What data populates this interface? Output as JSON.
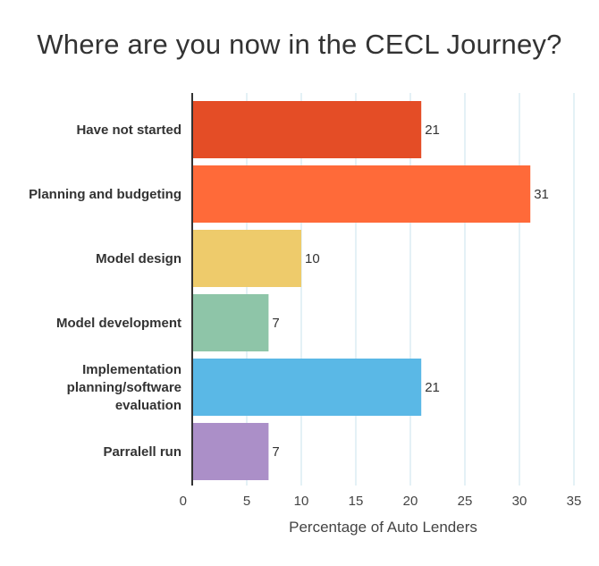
{
  "chart_data": {
    "type": "bar",
    "orientation": "horizontal",
    "title": "Where are you now in the CECL Journey?",
    "xlabel": "Percentage of Auto Lenders",
    "ylabel": "",
    "categories": [
      "Have not started",
      "Planning and budgeting",
      "Model design",
      "Model development",
      "Implementation planning/software evaluation",
      "Parralell run"
    ],
    "category_lines": [
      [
        "Have not started"
      ],
      [
        "Planning and budgeting"
      ],
      [
        "Model design"
      ],
      [
        "Model development"
      ],
      [
        "Implementation",
        "planning/software",
        "evaluation"
      ],
      [
        "Parralell run"
      ]
    ],
    "values": [
      21,
      31,
      10,
      7,
      21,
      7
    ],
    "value_labels": [
      "21",
      "31",
      "10",
      "7",
      "21",
      "7"
    ],
    "colors": [
      "#e44d26",
      "#ff6a39",
      "#eecb6b",
      "#8ec5a8",
      "#5ab8e6",
      "#ab8fc8"
    ],
    "xlim": [
      0,
      35
    ],
    "xticks": [
      "0",
      "5",
      "10",
      "15",
      "20",
      "25",
      "30",
      "35"
    ],
    "grid": true,
    "legend": "none"
  }
}
